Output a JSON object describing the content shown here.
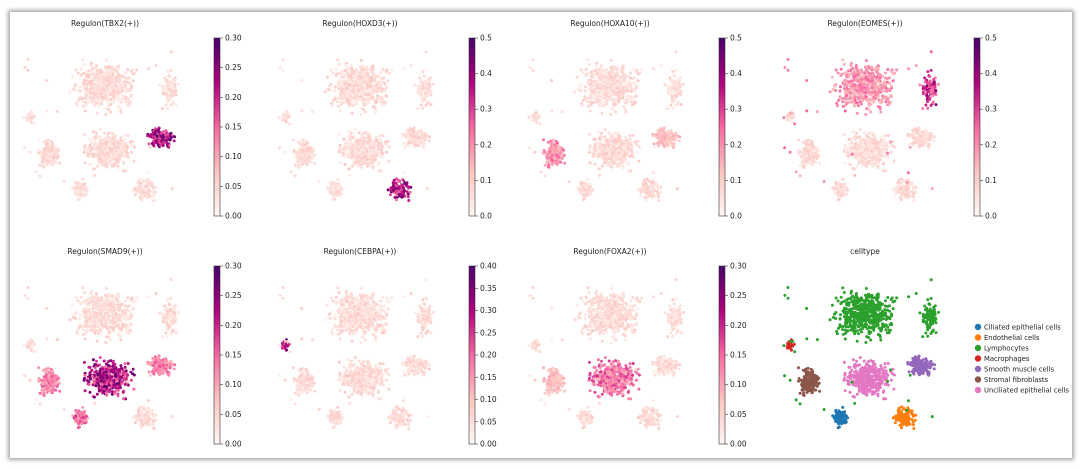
{
  "chart_data": [
    {
      "type": "scatter",
      "title": "Regulon(TBX2(+))",
      "colorbar": {
        "vmin": 0,
        "vmax": 0.3,
        "ticks": [
          "0.00",
          "0.05",
          "0.10",
          "0.15",
          "0.20",
          "0.25",
          "0.30"
        ]
      },
      "hotspots": [
        {
          "cluster": "Smooth muscle cells",
          "intensity": 0.9
        }
      ]
    },
    {
      "type": "scatter",
      "title": "Regulon(HOXD3(+))",
      "colorbar": {
        "vmin": 0,
        "vmax": 0.5,
        "ticks": [
          "0.0",
          "0.1",
          "0.2",
          "0.3",
          "0.4",
          "0.5"
        ]
      },
      "hotspots": [
        {
          "cluster": "Endothelial cells",
          "intensity": 0.85
        }
      ]
    },
    {
      "type": "scatter",
      "title": "Regulon(HOXA10(+))",
      "colorbar": {
        "vmin": 0,
        "vmax": 0.5,
        "ticks": [
          "0.0",
          "0.1",
          "0.2",
          "0.3",
          "0.4",
          "0.5"
        ]
      },
      "hotspots": [
        {
          "cluster": "Stromal fibroblasts",
          "intensity": 0.45
        },
        {
          "cluster": "Smooth muscle cells",
          "intensity": 0.3
        }
      ]
    },
    {
      "type": "scatter",
      "title": "Regulon(EOMES(+))",
      "colorbar": {
        "vmin": 0,
        "vmax": 0.5,
        "ticks": [
          "0.0",
          "0.1",
          "0.2",
          "0.3",
          "0.4",
          "0.5"
        ]
      },
      "hotspots": [
        {
          "cluster": "Lymphocytes",
          "intensity": 0.45
        },
        {
          "cluster": "Lymphocytes-right",
          "intensity": 0.75
        }
      ]
    },
    {
      "type": "scatter",
      "title": "Regulon(SMAD9(+))",
      "colorbar": {
        "vmin": 0,
        "vmax": 0.3,
        "ticks": [
          "0.00",
          "0.05",
          "0.10",
          "0.15",
          "0.20",
          "0.25",
          "0.30"
        ]
      },
      "hotspots": [
        {
          "cluster": "Unciliated epithelial cells",
          "intensity": 0.85
        },
        {
          "cluster": "Stromal fibroblasts",
          "intensity": 0.5
        },
        {
          "cluster": "Smooth muscle cells",
          "intensity": 0.5
        },
        {
          "cluster": "Ciliated epithelial cells",
          "intensity": 0.55
        }
      ]
    },
    {
      "type": "scatter",
      "title": "Regulon(CEBPA(+))",
      "colorbar": {
        "vmin": 0,
        "vmax": 0.4,
        "ticks": [
          "0.00",
          "0.05",
          "0.10",
          "0.15",
          "0.20",
          "0.25",
          "0.30",
          "0.35",
          "0.40"
        ]
      },
      "hotspots": [
        {
          "cluster": "Macrophages",
          "intensity": 0.85
        }
      ]
    },
    {
      "type": "scatter",
      "title": "Regulon(FOXA2(+))",
      "colorbar": {
        "vmin": 0,
        "vmax": 0.3,
        "ticks": [
          "0.00",
          "0.05",
          "0.10",
          "0.15",
          "0.20",
          "0.25",
          "0.30"
        ]
      },
      "hotspots": [
        {
          "cluster": "Unciliated epithelial cells",
          "intensity": 0.55
        },
        {
          "cluster": "Stromal fibroblasts",
          "intensity": 0.3
        }
      ]
    },
    {
      "type": "scatter",
      "title": "celltype",
      "legend": {
        "placement": "right",
        "entries": [
          {
            "label": "Ciliated epithelial cells",
            "color": "#1f77b4"
          },
          {
            "label": "Endothelial cells",
            "color": "#ff7f0e"
          },
          {
            "label": "Lymphocytes",
            "color": "#2ca02c"
          },
          {
            "label": "Macrophages",
            "color": "#d62728"
          },
          {
            "label": "Smooth muscle cells",
            "color": "#9467bd"
          },
          {
            "label": "Stromal fibroblasts",
            "color": "#8c564b"
          },
          {
            "label": "Unciliated epithelial cells",
            "color": "#e377c2"
          }
        ]
      }
    }
  ]
}
